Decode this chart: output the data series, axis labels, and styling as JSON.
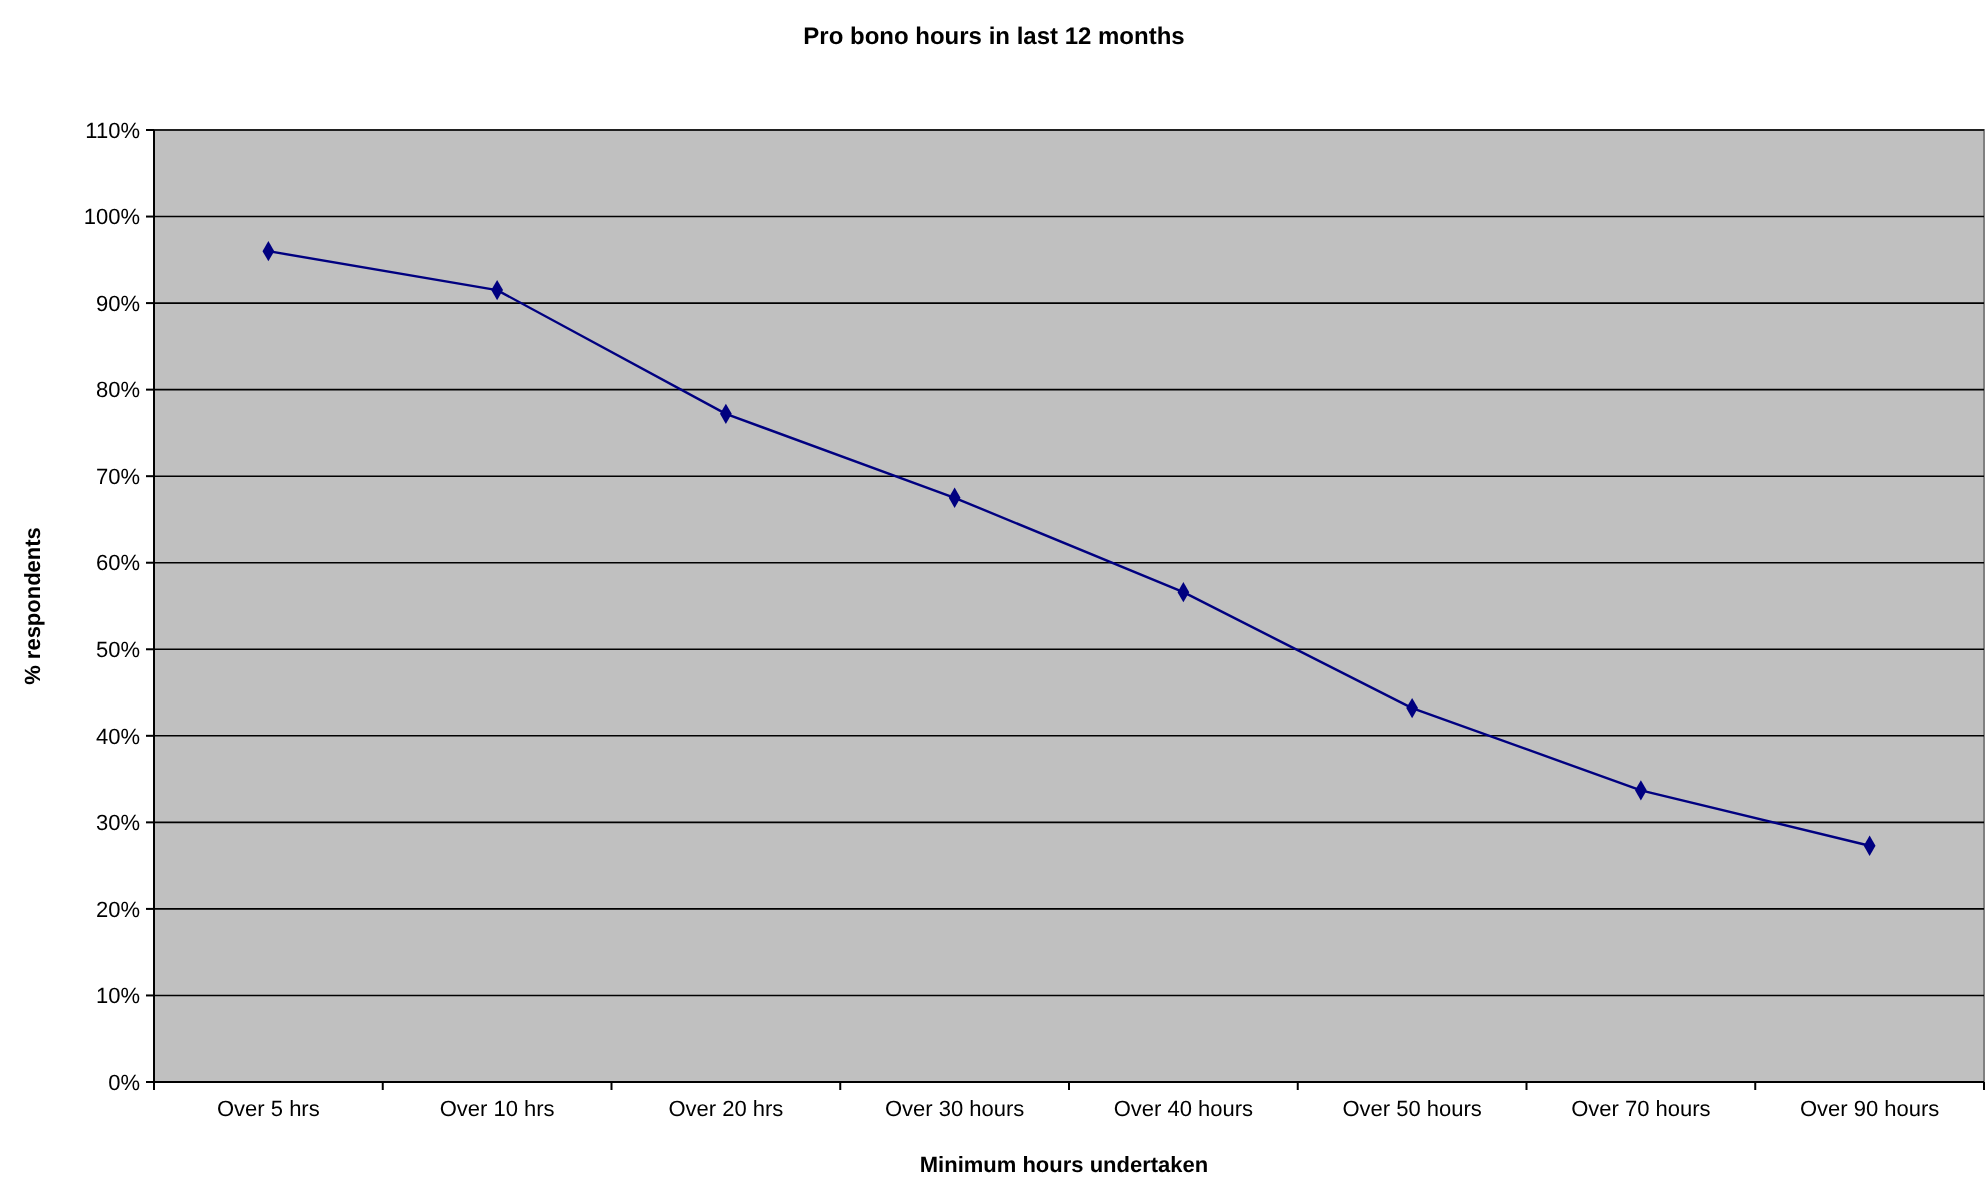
{
  "chart_data": {
    "type": "line",
    "title": "Pro bono hours in last 12 months",
    "xlabel": "Minimum hours undertaken",
    "ylabel": "% respondents",
    "categories": [
      "Over 5 hrs",
      "Over 10 hrs",
      "Over 20 hrs",
      "Over 30 hours",
      "Over 40 hours",
      "Over 50 hours",
      "Over 70 hours",
      "Over 90 hours"
    ],
    "series": [
      {
        "color": "#000080",
        "values": [
          96,
          91.5,
          77.2,
          67.5,
          56.6,
          43.2,
          33.7,
          27.3
        ]
      }
    ],
    "ylim": [
      0,
      110
    ],
    "yticks": [
      {
        "value": 0,
        "label": "0%"
      },
      {
        "value": 10,
        "label": "10%"
      },
      {
        "value": 20,
        "label": "20%"
      },
      {
        "value": 30,
        "label": "30%"
      },
      {
        "value": 40,
        "label": "40%"
      },
      {
        "value": 50,
        "label": "50%"
      },
      {
        "value": 60,
        "label": "60%"
      },
      {
        "value": 70,
        "label": "70%"
      },
      {
        "value": 80,
        "label": "80%"
      },
      {
        "value": 90,
        "label": "90%"
      },
      {
        "value": 100,
        "label": "100%"
      },
      {
        "value": 110,
        "label": "110%"
      }
    ],
    "grid": "y",
    "marker": "diamond",
    "line_style": "solid"
  }
}
